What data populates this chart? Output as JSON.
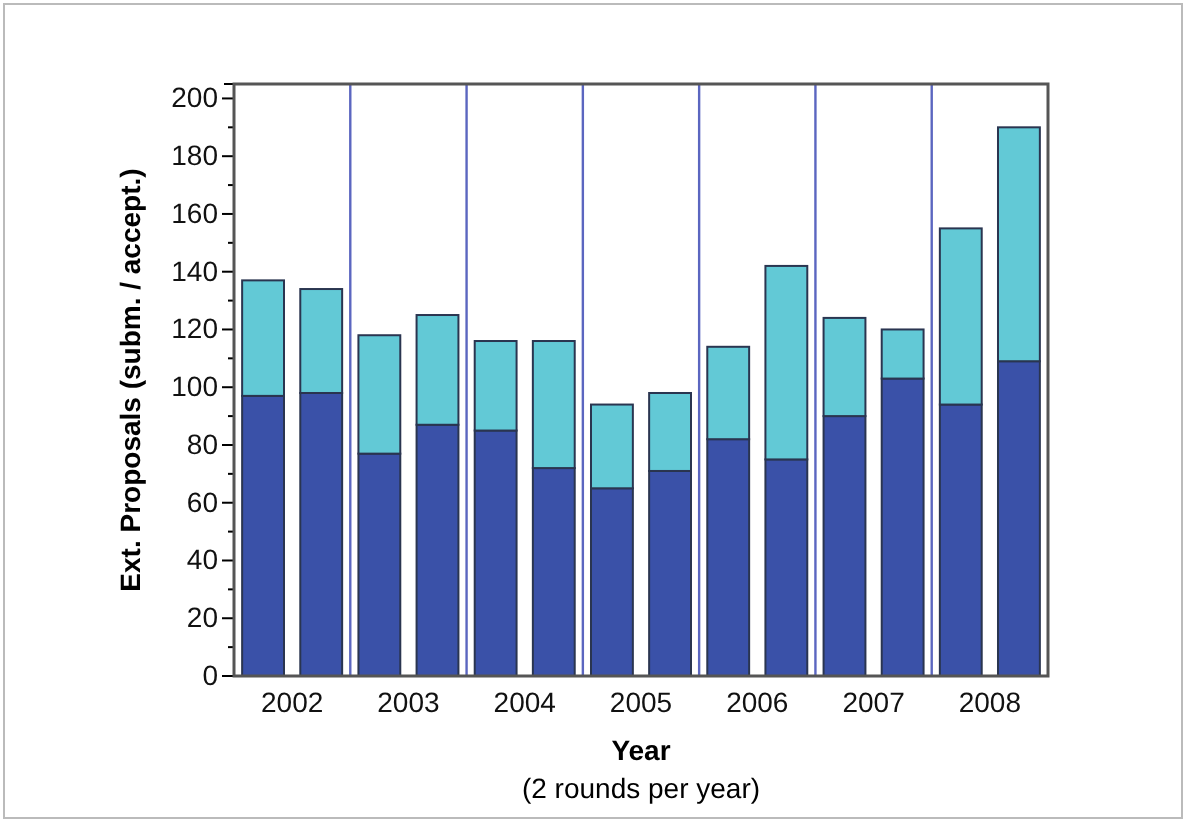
{
  "chart_data": {
    "type": "bar",
    "stacked": true,
    "xlabel": "Year",
    "ylabel": "Ext. Proposals (subm. / accept.)",
    "annotations": [
      "(2 rounds per year)"
    ],
    "x": [
      2001.75,
      2002.25,
      2002.75,
      2003.25,
      2003.75,
      2004.25,
      2004.75,
      2005.25,
      2005.75,
      2006.25,
      2006.75,
      2007.25,
      2007.75,
      2008.25
    ],
    "series": [
      {
        "color": "#3a51a8",
        "values": [
          97,
          98,
          77,
          87,
          85,
          72,
          65,
          71,
          82,
          75,
          90,
          103,
          94,
          109
        ]
      },
      {
        "color": "#62c9d6",
        "values": [
          40,
          36,
          41,
          38,
          31,
          44,
          29,
          27,
          32,
          67,
          34,
          17,
          61,
          81
        ]
      }
    ],
    "xlim": [
      2001.5,
      2008.5
    ],
    "xticks": [
      2002,
      2003,
      2004,
      2005,
      2006,
      2007,
      2008
    ],
    "ylim": [
      0,
      205
    ],
    "yticks": [
      0,
      {
        "value": 10,
        "label": null
      },
      20,
      {
        "value": 30,
        "label": null
      },
      40,
      {
        "value": 50,
        "label": null
      },
      60,
      {
        "value": 70,
        "label": null
      },
      80,
      {
        "value": 90,
        "label": null
      },
      100,
      {
        "value": 110,
        "label": null
      },
      120,
      {
        "value": 130,
        "label": null
      },
      140,
      {
        "value": 150,
        "label": null
      },
      160,
      {
        "value": 170,
        "label": null
      },
      180,
      {
        "value": 190,
        "label": null
      },
      200
    ],
    "ref_lines": [
      {
        "axis": "x",
        "value": 2002.5,
        "color": "#5b66c0"
      },
      {
        "axis": "x",
        "value": 2003.5,
        "color": "#5b66c0"
      },
      {
        "axis": "x",
        "value": 2004.5,
        "color": "#5b66c0"
      },
      {
        "axis": "x",
        "value": 2005.5,
        "color": "#5b66c0"
      },
      {
        "axis": "x",
        "value": 2006.5,
        "color": "#5b66c0"
      },
      {
        "axis": "x",
        "value": 2007.5,
        "color": "#5b66c0"
      }
    ],
    "grid": false
  }
}
